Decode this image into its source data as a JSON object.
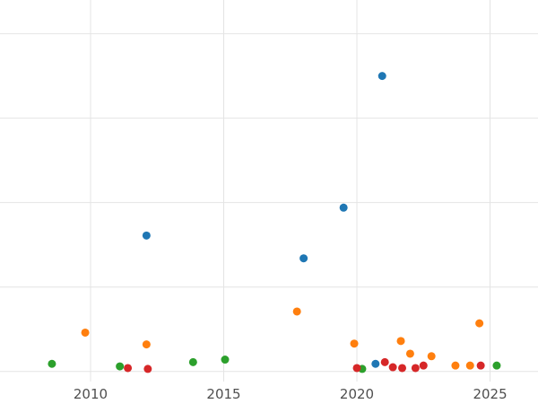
{
  "chart_data": {
    "type": "scatter",
    "title": "",
    "xlabel": "",
    "ylabel": "",
    "grid": true,
    "legend": "none",
    "background": "#ffffff",
    "gridline_color": "#e4e4e4",
    "tick_label_color": "#4f4f4f",
    "tick_font_size_px": 15,
    "point_radius_px": 4.5,
    "x_ticks": [
      2010,
      2015,
      2020,
      2025
    ],
    "y_gridline_values": [
      0,
      1,
      2,
      3,
      4
    ],
    "y_tick_labels_visible": false,
    "xlim": [
      2006.6,
      2026.8
    ],
    "ylim": [
      -0.12,
      4.4
    ],
    "series": [
      {
        "name": "series-blue",
        "color": "#1f77b4",
        "points": [
          [
            2012.1,
            1.61
          ],
          [
            2018.0,
            1.34
          ],
          [
            2019.5,
            1.94
          ],
          [
            2020.95,
            3.5
          ],
          [
            2020.7,
            0.09
          ]
        ]
      },
      {
        "name": "series-orange",
        "color": "#ff7f0e",
        "points": [
          [
            2009.8,
            0.46
          ],
          [
            2012.1,
            0.32
          ],
          [
            2017.75,
            0.71
          ],
          [
            2019.9,
            0.33
          ],
          [
            2021.65,
            0.36
          ],
          [
            2022.0,
            0.21
          ],
          [
            2022.8,
            0.18
          ],
          [
            2023.7,
            0.07
          ],
          [
            2024.25,
            0.07
          ],
          [
            2024.6,
            0.57
          ]
        ]
      },
      {
        "name": "series-green",
        "color": "#2ca02c",
        "points": [
          [
            2008.55,
            0.09
          ],
          [
            2011.1,
            0.06
          ],
          [
            2013.85,
            0.11
          ],
          [
            2015.05,
            0.14
          ],
          [
            2020.2,
            0.03
          ],
          [
            2025.25,
            0.07
          ]
        ]
      },
      {
        "name": "series-red",
        "color": "#d62728",
        "points": [
          [
            2011.4,
            0.04
          ],
          [
            2012.15,
            0.03
          ],
          [
            2020.0,
            0.04
          ],
          [
            2021.05,
            0.11
          ],
          [
            2021.35,
            0.05
          ],
          [
            2021.7,
            0.04
          ],
          [
            2022.2,
            0.04
          ],
          [
            2022.5,
            0.07
          ],
          [
            2024.65,
            0.07
          ]
        ]
      }
    ]
  }
}
